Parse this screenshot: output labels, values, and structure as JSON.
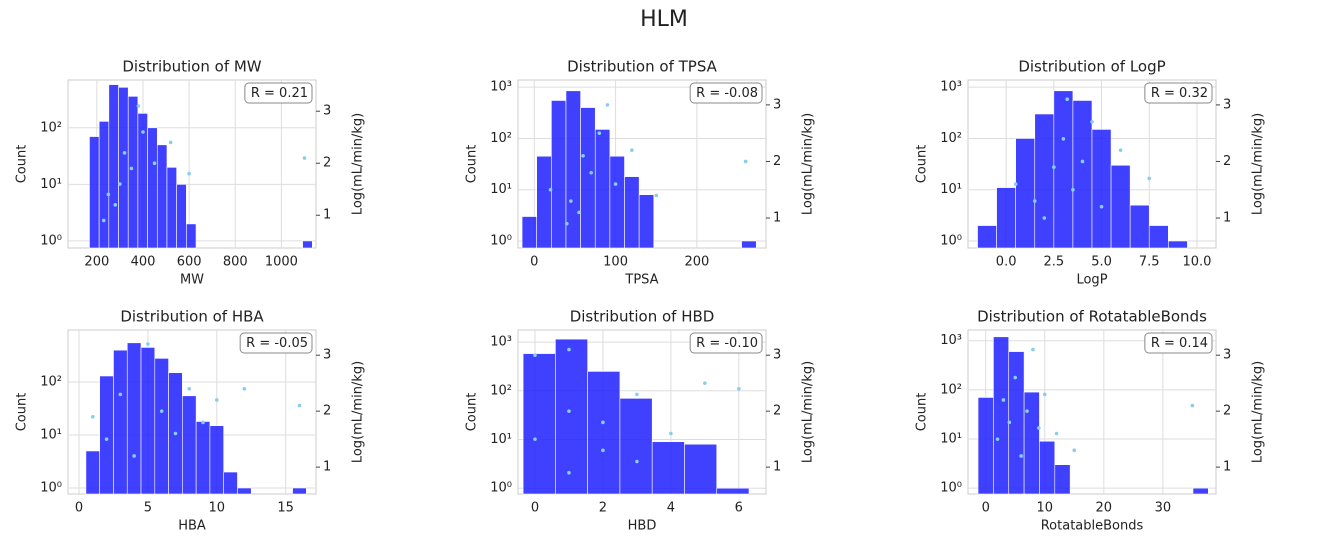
{
  "title": "HLM",
  "chart_data": [
    {
      "type": "histogram",
      "title": "Distribution of MW",
      "xlabel": "MW",
      "ylabel": "Count",
      "y2label": "Log(mL/min/kg)",
      "annotation": "R = 0.21",
      "bins": [
        168,
        210,
        252,
        294,
        336,
        378,
        420,
        462,
        504,
        546,
        588,
        630,
        672,
        714,
        756,
        798,
        840,
        882,
        924,
        966,
        1008,
        1050,
        1092,
        1134
      ],
      "counts": [
        70,
        130,
        580,
        520,
        360,
        180,
        100,
        50,
        20,
        10,
        2,
        0,
        0,
        0,
        0,
        0,
        0,
        0,
        0,
        0,
        0,
        0,
        1
      ],
      "color": "#1f1fff",
      "log_y": true,
      "grid": true,
      "xlim": [
        75,
        1150
      ],
      "xticks": [
        200,
        400,
        600,
        800,
        1000
      ],
      "ylim": [
        0.75,
        700
      ],
      "yticks": [
        {
          "value": 1,
          "label": "10⁰"
        },
        {
          "value": 10,
          "label": "10¹"
        },
        {
          "value": 100,
          "label": "10²"
        }
      ],
      "y2lim": [
        0.37,
        3.6
      ],
      "y2ticks": [
        1,
        2,
        3
      ],
      "scatter": {
        "axis": "y2",
        "color": "#87ceeb",
        "x": [
          250,
          300,
          320,
          350,
          400,
          280,
          450,
          520,
          600,
          1100,
          380,
          230
        ],
        "values": [
          1.4,
          1.6,
          2.2,
          1.9,
          2.6,
          1.2,
          2.0,
          2.4,
          1.8,
          2.1,
          3.1,
          0.9
        ]
      }
    },
    {
      "type": "histogram",
      "title": "Distribution of TPSA",
      "xlabel": "TPSA",
      "ylabel": "Count",
      "y2label": "Log(mL/min/kg)",
      "annotation": "R = -0.08",
      "bins": [
        -15,
        3,
        21,
        39,
        57,
        75,
        93,
        111,
        129,
        147,
        165,
        183,
        201,
        219,
        237,
        255,
        273
      ],
      "counts": [
        3,
        45,
        550,
        850,
        400,
        150,
        45,
        18,
        8,
        0,
        0,
        0,
        0,
        0,
        0,
        1
      ],
      "color": "#1f1fff",
      "log_y": true,
      "grid": true,
      "xlim": [
        -20,
        285
      ],
      "xticks": [
        0,
        100,
        200
      ],
      "ylim": [
        0.73,
        1380
      ],
      "yticks": [
        {
          "value": 1,
          "label": "10⁰"
        },
        {
          "value": 10,
          "label": "10¹"
        },
        {
          "value": 100,
          "label": "10²"
        },
        {
          "value": 1000,
          "label": "10³"
        }
      ],
      "y2lim": [
        0.47,
        3.44
      ],
      "y2ticks": [
        1,
        2,
        3
      ],
      "scatter": {
        "axis": "y2",
        "color": "#87ceeb",
        "x": [
          20,
          45,
          60,
          70,
          80,
          100,
          120,
          150,
          40,
          260,
          90,
          55
        ],
        "values": [
          1.5,
          1.3,
          2.1,
          1.8,
          2.5,
          1.6,
          2.2,
          1.4,
          0.9,
          2.0,
          3.0,
          1.1
        ]
      }
    },
    {
      "type": "histogram",
      "title": "Distribution of LogP",
      "xlabel": "LogP",
      "ylabel": "Count",
      "y2label": "Log(mL/min/kg)",
      "annotation": "R = 0.32",
      "bins": [
        -1.5,
        -0.5,
        0.5,
        1.5,
        2.5,
        3.5,
        4.5,
        5.5,
        6.5,
        7.5,
        8.5,
        9.5
      ],
      "counts": [
        2,
        11,
        100,
        300,
        850,
        550,
        150,
        30,
        5,
        2,
        1
      ],
      "color": "#1f1fff",
      "log_y": true,
      "grid": true,
      "xlim": [
        -2,
        11
      ],
      "xticks": [
        {
          "value": 0,
          "label": "0.0"
        },
        {
          "value": 2.5,
          "label": "2.5"
        },
        {
          "value": 5,
          "label": "5.0"
        },
        {
          "value": 7.5,
          "label": "7.5"
        },
        {
          "value": 10,
          "label": "10.0"
        }
      ],
      "ylim": [
        0.73,
        1380
      ],
      "yticks": [
        {
          "value": 1,
          "label": "10⁰"
        },
        {
          "value": 10,
          "label": "10¹"
        },
        {
          "value": 100,
          "label": "10²"
        },
        {
          "value": 1000,
          "label": "10³"
        }
      ],
      "y2lim": [
        0.47,
        3.44
      ],
      "y2ticks": [
        1,
        2,
        3
      ],
      "scatter": {
        "axis": "y2",
        "color": "#87ceeb",
        "x": [
          0.5,
          1.5,
          2.5,
          3.0,
          3.5,
          4.0,
          4.5,
          5.0,
          6.0,
          7.5,
          3.2,
          2.0
        ],
        "values": [
          1.6,
          1.3,
          1.9,
          2.4,
          1.5,
          2.0,
          2.7,
          1.2,
          2.2,
          1.7,
          3.1,
          1.0
        ]
      }
    },
    {
      "type": "histogram",
      "title": "Distribution of HBA",
      "xlabel": "HBA",
      "ylabel": "Count",
      "y2label": "Log(mL/min/kg)",
      "annotation": "R = -0.05",
      "bins": [
        0.5,
        1.5,
        2.5,
        3.5,
        4.5,
        5.5,
        6.5,
        7.5,
        8.5,
        9.5,
        10.5,
        11.5,
        12.5,
        13.5,
        14.5,
        15.5,
        16.5
      ],
      "counts": [
        5,
        130,
        400,
        550,
        450,
        280,
        150,
        55,
        18,
        15,
        2,
        1,
        0,
        0,
        0,
        1
      ],
      "color": "#1f1fff",
      "log_y": true,
      "grid": true,
      "xlim": [
        -0.8,
        17.2
      ],
      "xticks": [
        0,
        5,
        10,
        15
      ],
      "ylim": [
        0.77,
        960
      ],
      "yticks": [
        {
          "value": 1,
          "label": "10⁰"
        },
        {
          "value": 10,
          "label": "10¹"
        },
        {
          "value": 100,
          "label": "10²"
        }
      ],
      "y2lim": [
        0.52,
        3.45
      ],
      "y2ticks": [
        1,
        2,
        3
      ],
      "scatter": {
        "axis": "y2",
        "color": "#87ceeb",
        "x": [
          1,
          2,
          3,
          4,
          5,
          6,
          7,
          8,
          9,
          10,
          12,
          16
        ],
        "values": [
          1.9,
          1.5,
          2.3,
          1.2,
          3.2,
          2.0,
          1.6,
          2.4,
          1.8,
          2.2,
          2.4,
          2.1
        ]
      }
    },
    {
      "type": "histogram",
      "title": "Distribution of HBD",
      "xlabel": "HBD",
      "ylabel": "Count",
      "y2label": "Log(mL/min/kg)",
      "annotation": "R = -0.10",
      "bins": [
        -0.35,
        0.6,
        1.55,
        2.5,
        3.45,
        4.4,
        5.35,
        6.3
      ],
      "counts": [
        580,
        1150,
        250,
        70,
        9,
        8,
        1
      ],
      "color": "#1f1fff",
      "log_y": true,
      "grid": true,
      "xlim": [
        -0.5,
        6.8
      ],
      "xticks": [
        0,
        2,
        4,
        6
      ],
      "ylim": [
        0.76,
        1770
      ],
      "yticks": [
        {
          "value": 1,
          "label": "10⁰"
        },
        {
          "value": 10,
          "label": "10¹"
        },
        {
          "value": 100,
          "label": "10²"
        },
        {
          "value": 1000,
          "label": "10³"
        }
      ],
      "y2lim": [
        0.52,
        3.45
      ],
      "y2ticks": [
        1,
        2,
        3
      ],
      "scatter": {
        "axis": "y2",
        "color": "#87ceeb",
        "x": [
          0,
          1,
          2,
          3,
          4,
          5,
          0,
          1,
          2,
          6,
          3,
          1
        ],
        "values": [
          1.5,
          2.0,
          1.8,
          2.3,
          1.6,
          2.5,
          3.0,
          0.9,
          1.3,
          2.4,
          1.1,
          3.1
        ]
      }
    },
    {
      "type": "histogram",
      "title": "Distribution of RotatableBonds",
      "xlabel": "RotatableBonds",
      "ylabel": "Count",
      "y2label": "Log(mL/min/kg)",
      "annotation": "R = 0.14",
      "bins": [
        -1.3,
        1.3,
        3.9,
        6.5,
        9.1,
        11.7,
        14.3,
        16.9,
        19.5,
        22.1,
        24.7,
        27.3,
        29.9,
        32.5,
        35.1,
        37.7
      ],
      "counts": [
        70,
        1200,
        600,
        90,
        9,
        3,
        0,
        0,
        0,
        0,
        0,
        0,
        0,
        0,
        1
      ],
      "color": "#1f1fff",
      "log_y": true,
      "grid": true,
      "xlim": [
        -3,
        39
      ],
      "xticks": [
        0,
        10,
        20,
        30
      ],
      "ylim": [
        0.76,
        1650
      ],
      "yticks": [
        {
          "value": 1,
          "label": "10⁰"
        },
        {
          "value": 10,
          "label": "10¹"
        },
        {
          "value": 100,
          "label": "10²"
        },
        {
          "value": 1000,
          "label": "10³"
        }
      ],
      "y2lim": [
        0.52,
        3.45
      ],
      "y2ticks": [
        1,
        2,
        3
      ],
      "scatter": {
        "axis": "y2",
        "color": "#87ceeb",
        "x": [
          2,
          3,
          4,
          5,
          6,
          7,
          8,
          9,
          10,
          12,
          15,
          35
        ],
        "values": [
          1.5,
          2.2,
          1.8,
          2.6,
          1.2,
          2.0,
          3.1,
          1.7,
          2.3,
          1.6,
          1.3,
          2.1
        ]
      }
    }
  ]
}
